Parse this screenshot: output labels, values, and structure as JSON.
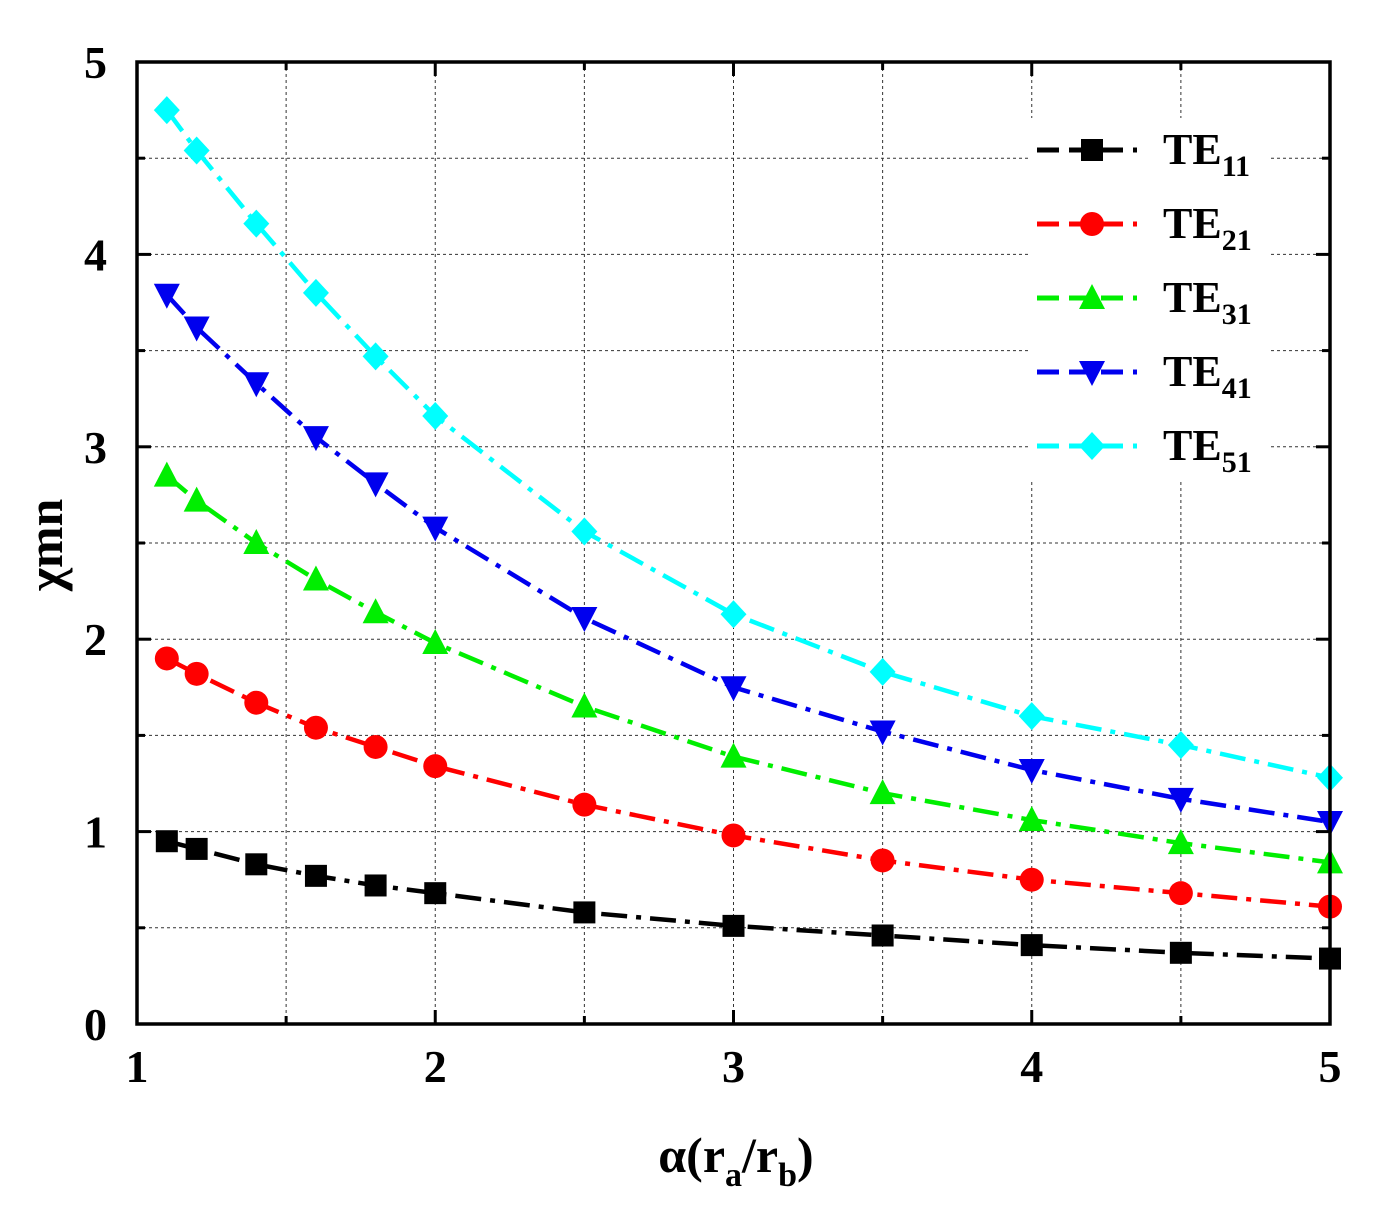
{
  "chart_data": {
    "type": "line",
    "title": "",
    "xlabel": {
      "main": "α(r",
      "sub1": "a",
      "mid": "/r",
      "sub2": "b",
      "end": ")"
    },
    "ylabel": "χmn",
    "xlim": [
      1,
      5
    ],
    "ylim": [
      0,
      5
    ],
    "xticks": [
      1,
      2,
      3,
      4,
      5
    ],
    "yticks": [
      0,
      1,
      2,
      3,
      4,
      5
    ],
    "xtick_labels": [
      "1",
      "2",
      "3",
      "4",
      "5"
    ],
    "ytick_labels": [
      "0",
      "1",
      "2",
      "3",
      "4",
      "5"
    ],
    "grid": true,
    "legend_position": "top-right",
    "x": [
      1.1,
      1.2,
      1.4,
      1.6,
      1.8,
      2.0,
      2.5,
      3.0,
      3.5,
      4.0,
      4.5,
      5.0
    ],
    "series": [
      {
        "name": "TE11",
        "label_main": "TE",
        "label_sub": "11",
        "color": "#000000",
        "marker": "square",
        "values": [
          0.95,
          0.91,
          0.83,
          0.77,
          0.72,
          0.68,
          0.58,
          0.51,
          0.46,
          0.41,
          0.37,
          0.34
        ]
      },
      {
        "name": "TE21",
        "label_main": "TE",
        "label_sub": "21",
        "color": "#ff0000",
        "marker": "circle",
        "values": [
          1.9,
          1.82,
          1.67,
          1.54,
          1.44,
          1.34,
          1.14,
          0.98,
          0.85,
          0.75,
          0.68,
          0.61
        ]
      },
      {
        "name": "TE31",
        "label_main": "TE",
        "label_sub": "31",
        "color": "#00ee00",
        "marker": "triangle-up",
        "values": [
          2.85,
          2.72,
          2.5,
          2.31,
          2.14,
          1.98,
          1.65,
          1.39,
          1.2,
          1.06,
          0.94,
          0.84
        ]
      },
      {
        "name": "TE41",
        "label_main": "TE",
        "label_sub": "41",
        "color": "#0000ee",
        "marker": "triangle-down",
        "values": [
          3.79,
          3.62,
          3.33,
          3.05,
          2.81,
          2.58,
          2.11,
          1.75,
          1.52,
          1.32,
          1.17,
          1.05
        ]
      },
      {
        "name": "TE51",
        "label_main": "TE",
        "label_sub": "51",
        "color": "#00ffff",
        "marker": "diamond",
        "values": [
          4.75,
          4.54,
          4.16,
          3.8,
          3.47,
          3.16,
          2.56,
          2.13,
          1.83,
          1.6,
          1.45,
          1.28
        ]
      }
    ]
  }
}
